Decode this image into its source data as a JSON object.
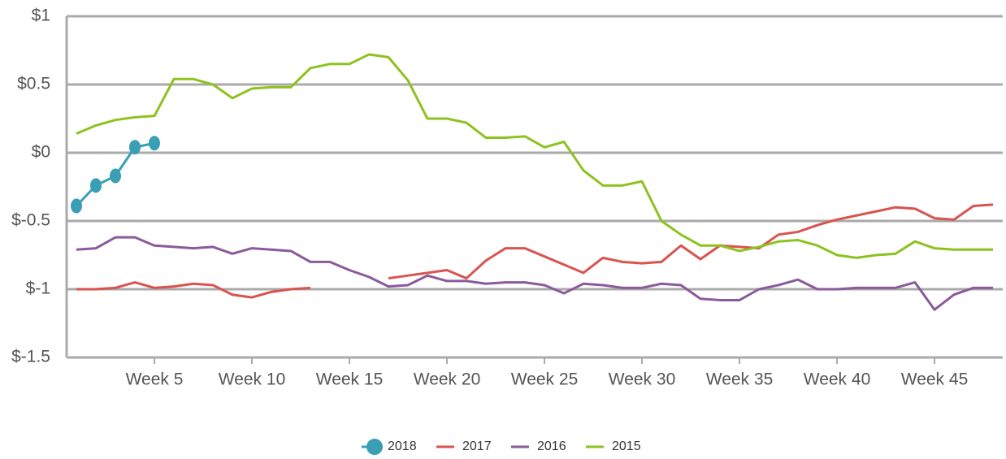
{
  "chart_data": {
    "type": "line",
    "x": [
      1,
      2,
      3,
      4,
      5,
      6,
      7,
      8,
      9,
      10,
      11,
      12,
      13,
      14,
      15,
      16,
      17,
      18,
      19,
      20,
      21,
      22,
      23,
      24,
      25,
      26,
      27,
      28,
      29,
      30,
      31,
      32,
      33,
      34,
      35,
      36,
      37,
      38,
      39,
      40,
      41,
      42,
      43,
      44,
      45,
      46,
      47,
      48
    ],
    "xlim": [
      0.5,
      48.5
    ],
    "xticks": [
      {
        "value": 5,
        "label": "Week 5"
      },
      {
        "value": 10,
        "label": "Week 10"
      },
      {
        "value": 15,
        "label": "Week 15"
      },
      {
        "value": 20,
        "label": "Week 20"
      },
      {
        "value": 25,
        "label": "Week 25"
      },
      {
        "value": 30,
        "label": "Week 30"
      },
      {
        "value": 35,
        "label": "Week 35"
      },
      {
        "value": 40,
        "label": "Week 40"
      },
      {
        "value": 45,
        "label": "Week 45"
      }
    ],
    "ylim": [
      -1.5,
      1
    ],
    "yticks": [
      {
        "value": -1.5,
        "label": "$-1.5"
      },
      {
        "value": -1,
        "label": "$-1"
      },
      {
        "value": -0.5,
        "label": "$-0.5"
      },
      {
        "value": 0,
        "label": "$0"
      },
      {
        "value": 0.5,
        "label": "$0.5"
      },
      {
        "value": 1,
        "label": "$1"
      }
    ],
    "grid": true,
    "legend": "bottom",
    "series": [
      {
        "name": "2018",
        "color": "#3a9fb5",
        "markers": true,
        "values": [
          -0.39,
          -0.24,
          -0.17,
          0.04,
          0.07,
          null,
          null,
          null,
          null,
          null,
          null,
          null,
          null,
          null,
          null,
          null,
          null,
          null,
          null,
          null,
          null,
          null,
          null,
          null,
          null,
          null,
          null,
          null,
          null,
          null,
          null,
          null,
          null,
          null,
          null,
          null,
          null,
          null,
          null,
          null,
          null,
          null,
          null,
          null,
          null,
          null,
          null,
          null
        ]
      },
      {
        "name": "2017",
        "color": "#d9534f",
        "values": [
          -1.0,
          -1.0,
          -0.99,
          -0.95,
          -0.99,
          -0.98,
          -0.96,
          -0.97,
          -1.04,
          -1.06,
          -1.02,
          -1.0,
          -0.99,
          null,
          null,
          null,
          -0.92,
          -0.9,
          -0.88,
          -0.86,
          -0.92,
          -0.79,
          -0.7,
          -0.7,
          -0.76,
          -0.82,
          -0.88,
          -0.77,
          -0.8,
          -0.81,
          -0.8,
          -0.68,
          -0.78,
          -0.68,
          -0.69,
          -0.7,
          -0.6,
          -0.58,
          -0.53,
          -0.49,
          -0.46,
          -0.43,
          -0.4,
          -0.41,
          -0.48,
          -0.49,
          -0.39,
          -0.38
        ]
      },
      {
        "name": "2016",
        "color": "#8a5a9a",
        "values": [
          -0.71,
          -0.7,
          -0.62,
          -0.62,
          -0.68,
          -0.69,
          -0.7,
          -0.69,
          -0.74,
          -0.7,
          -0.71,
          -0.72,
          -0.8,
          -0.8,
          -0.86,
          -0.91,
          -0.98,
          -0.97,
          -0.9,
          -0.94,
          -0.94,
          -0.96,
          -0.95,
          -0.95,
          -0.97,
          -1.03,
          -0.96,
          -0.97,
          -0.99,
          -0.99,
          -0.96,
          -0.97,
          -1.07,
          -1.08,
          -1.08,
          -1.0,
          -0.97,
          -0.93,
          -1.0,
          -1.0,
          -0.99,
          -0.99,
          -0.99,
          -0.95,
          -1.15,
          -1.04,
          -0.99,
          -0.99
        ]
      },
      {
        "name": "2015",
        "color": "#8dc21f",
        "values": [
          0.14,
          0.2,
          0.24,
          0.26,
          0.27,
          0.54,
          0.54,
          0.5,
          0.4,
          0.47,
          0.48,
          0.48,
          0.62,
          0.65,
          0.65,
          0.72,
          0.7,
          0.53,
          0.25,
          0.25,
          0.22,
          0.11,
          0.11,
          0.12,
          0.04,
          0.08,
          -0.13,
          -0.24,
          -0.24,
          -0.21,
          -0.5,
          -0.6,
          -0.68,
          -0.68,
          -0.72,
          -0.69,
          -0.65,
          -0.64,
          -0.68,
          -0.75,
          -0.77,
          -0.75,
          -0.74,
          -0.65,
          -0.7,
          -0.71,
          -0.71,
          -0.71
        ]
      }
    ]
  }
}
